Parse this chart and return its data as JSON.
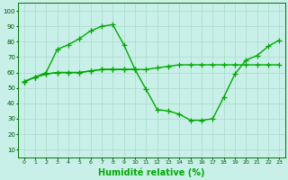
{
  "x": [
    0,
    1,
    2,
    3,
    4,
    5,
    6,
    7,
    8,
    9,
    10,
    11,
    12,
    13,
    14,
    15,
    16,
    17,
    18,
    19,
    20,
    21,
    22,
    23
  ],
  "line1": [
    54,
    57,
    60,
    75,
    78,
    82,
    87,
    90,
    91,
    78,
    62,
    null,
    null,
    null,
    null,
    null,
    null,
    null,
    null,
    null,
    null,
    null,
    null,
    null
  ],
  "line2": [
    54,
    57,
    59,
    60,
    60,
    60,
    61,
    62,
    62,
    62,
    62,
    62,
    63,
    64,
    65,
    65,
    65,
    65,
    65,
    65,
    65,
    65,
    65,
    65
  ],
  "line3": [
    54,
    57,
    59,
    60,
    60,
    60,
    61,
    62,
    62,
    62,
    62,
    49,
    36,
    35,
    33,
    29,
    29,
    30,
    44,
    59,
    68,
    71,
    77,
    81
  ],
  "bg_color": "#c8f0e8",
  "grid_color": "#b0ddd0",
  "line_color": "#00aa00",
  "xlabel": "Humidité relative (%)",
  "xlabel_fontsize": 7,
  "yticks": [
    10,
    20,
    30,
    40,
    50,
    60,
    70,
    80,
    90,
    100
  ],
  "xticks": [
    0,
    1,
    2,
    3,
    4,
    5,
    6,
    7,
    8,
    9,
    10,
    11,
    12,
    13,
    14,
    15,
    16,
    17,
    18,
    19,
    20,
    21,
    22,
    23
  ],
  "ylim": [
    5,
    105
  ],
  "xlim": [
    -0.5,
    23.5
  ],
  "markersize": 4,
  "linewidth": 1.0
}
